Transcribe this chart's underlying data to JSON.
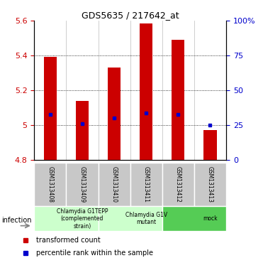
{
  "title": "GDS5635 / 217642_at",
  "samples": [
    "GSM1313408",
    "GSM1313409",
    "GSM1313410",
    "GSM1313411",
    "GSM1313412",
    "GSM1313413"
  ],
  "bar_bottoms": [
    4.8,
    4.8,
    4.8,
    4.8,
    4.8,
    4.8
  ],
  "bar_tops": [
    5.39,
    5.14,
    5.33,
    5.585,
    5.49,
    4.97
  ],
  "percentile_values": [
    5.06,
    5.01,
    5.04,
    5.07,
    5.06,
    5.0
  ],
  "ylim": [
    4.8,
    5.6
  ],
  "yticks_left": [
    4.8,
    5.0,
    5.2,
    5.4,
    5.6
  ],
  "ytick_left_labels": [
    "4.8",
    "5",
    "5.2",
    "5.4",
    "5.6"
  ],
  "right_tick_positions": [
    4.8,
    5.0,
    5.2,
    5.4,
    5.6
  ],
  "right_tick_labels": [
    "0",
    "25",
    "50",
    "75",
    "100%"
  ],
  "bar_color": "#cc0000",
  "dot_color": "#0000cc",
  "grid_color": "#000000",
  "groups": [
    {
      "label": "Chlamydia G1TEPP\n(complemented\nstrain)",
      "start": 0,
      "end": 2,
      "color": "#ccffcc"
    },
    {
      "label": "Chlamydia G1V\nmutant",
      "start": 2,
      "end": 4,
      "color": "#ccffcc"
    },
    {
      "label": "mock",
      "start": 4,
      "end": 6,
      "color": "#55cc55"
    }
  ],
  "infection_label": "infection",
  "legend_items": [
    {
      "color": "#cc0000",
      "label": "transformed count"
    },
    {
      "color": "#0000cc",
      "label": "percentile rank within the sample"
    }
  ],
  "left_axis_color": "#cc0000",
  "right_axis_color": "#0000cc",
  "sample_box_color": "#c8c8c8",
  "bar_width": 0.4
}
